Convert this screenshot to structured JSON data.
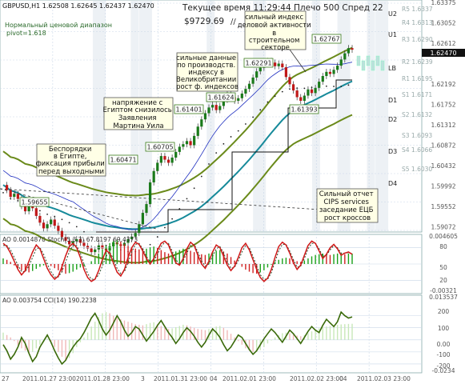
{
  "header": {
    "symbol_line": "GBPUSD,H1  1.62508 1.62645 1.62437 1.62470",
    "status_line": "Текущее время 11:29:44 Плечо 500 Спред 22",
    "balance": "$9729.69",
    "indicator_name": "Нормальный ценовой диапазон",
    "pivot_info": "pivot=1.618"
  },
  "chart_data": {
    "type": "candlestick",
    "symbol": "GBPUSD",
    "timeframe": "H1",
    "last_quote": {
      "open": 1.62508,
      "high": 1.62645,
      "low": 1.62437,
      "close": 1.6247
    },
    "ylim": [
      1.5897,
      1.6337
    ],
    "price_axis_labels": [
      "1.63375",
      "1.63052",
      "1.62612",
      "1.62470",
      "1.62192",
      "1.61752",
      "1.61312",
      "1.60872",
      "1.60432",
      "1.59992",
      "1.59552",
      "1.59072"
    ],
    "current_price_label": "1.62470",
    "time_labels": [
      "27",
      "2011.01.27 23:00",
      "2011.01.28 23:00",
      "3",
      "2011.01.31 23:00",
      "04",
      "2011.02.01 23:00",
      "2011.02.02 23:00",
      "04",
      "2011.02.03 23:00"
    ],
    "close_series": [
      1.5985,
      1.5975,
      1.5962,
      1.5968,
      1.5958,
      1.5944,
      1.5934,
      1.5948,
      1.594,
      1.5925,
      1.5912,
      1.5901,
      1.5909,
      1.5918,
      1.5906,
      1.5896,
      1.5884,
      1.5877,
      1.587,
      1.5876,
      1.588,
      1.5873,
      1.5867,
      1.5862,
      1.5855,
      1.586,
      1.5868,
      1.5862,
      1.5858,
      1.5866,
      1.5874,
      1.587,
      1.5867,
      1.5873,
      1.588,
      1.5885,
      1.5892,
      1.5909,
      1.5931,
      1.5948,
      1.599,
      1.6012,
      1.6028,
      1.6041,
      1.6034,
      1.6028,
      1.6038,
      1.6049,
      1.6059,
      1.6064,
      1.607,
      1.6062,
      1.608,
      1.6098,
      1.6112,
      1.6124,
      1.6135,
      1.614,
      1.613,
      1.6138,
      1.615,
      1.616,
      1.6155,
      1.6148,
      1.6153,
      1.6162,
      1.6171,
      1.6181,
      1.6193,
      1.6205,
      1.6212,
      1.6219,
      1.6225,
      1.6222,
      1.6215,
      1.622,
      1.6213,
      1.6194,
      1.618,
      1.6168,
      1.6155,
      1.6148,
      1.6158,
      1.617,
      1.6163,
      1.6173,
      1.6185,
      1.6196,
      1.6204,
      1.62,
      1.6208,
      1.6216,
      1.6228,
      1.624,
      1.625,
      1.6247
    ],
    "price_labels": [
      "1.59655",
      "1.60471",
      "1.60705",
      "1.61401",
      "1.61624",
      "1.62291",
      "1.61393",
      "1.62767"
    ],
    "levels": [
      {
        "name": "U2",
        "value": 1.633
      },
      {
        "name": "U1",
        "value": 1.6297
      },
      {
        "name": "LB",
        "value": 1.6225
      },
      {
        "name": "D1",
        "value": 1.6176
      },
      {
        "name": "D2",
        "value": 1.6136
      },
      {
        "name": "D3",
        "value": 1.604
      },
      {
        "name": "D4",
        "value": 1.596
      }
    ],
    "pivot_levels": [
      {
        "name": "R5",
        "value": "1.6337"
      },
      {
        "name": "R4",
        "value": "1.6313"
      },
      {
        "name": "R3",
        "value": "1.6290"
      },
      {
        "name": "R2",
        "value": "1.6239"
      },
      {
        "name": "R1",
        "value": "1.6195"
      },
      {
        "name": "S1",
        "value": "1.6171"
      },
      {
        "name": "S2",
        "value": "1.6132"
      },
      {
        "name": "S3",
        "value": "1.6093"
      },
      {
        "name": "S4",
        "value": "1.6066"
      },
      {
        "name": "S5",
        "value": "1.6030"
      }
    ],
    "annotations": [
      "сильный индекс деловой активности в строительном секторе",
      "сильные данные по производств. индексу в Великобритании рост ф. индексов",
      "напряжение с Египтом снизилось Заявления Мартина Уила",
      "Беспорядки в Египте, фиксация прибыли перед выходными",
      "Сильный отчет CIPS services заседание ЕЦБ рост кроссов"
    ],
    "ao_stoch": {
      "label": "AO 0.0014870  Stoch(5,3,3) 67.8197 69.4373",
      "ylim": [
        -0.0032,
        0.0046
      ],
      "axis_labels": [
        "0.004605",
        "80",
        "50",
        "20",
        "-0.00321"
      ],
      "stoch_main": [
        88,
        82,
        70,
        55,
        40,
        30,
        38,
        55,
        72,
        85,
        78,
        60,
        42,
        30,
        22,
        28,
        45,
        65,
        82,
        88,
        80,
        62,
        40,
        25,
        18,
        22,
        38,
        58,
        75,
        70,
        52,
        35,
        28,
        40,
        62,
        80,
        90,
        86,
        74,
        60,
        50,
        60,
        75,
        88,
        92,
        85,
        68,
        52,
        48,
        60,
        78,
        90,
        84,
        66,
        50,
        42,
        55,
        72,
        85,
        80,
        64,
        48,
        38,
        46,
        62,
        80,
        88,
        76,
        58,
        40,
        25,
        18,
        24,
        40,
        62,
        82,
        90,
        85,
        70,
        52,
        40,
        48,
        66,
        84,
        92,
        88,
        74,
        60,
        68,
        80,
        86,
        78,
        66,
        70,
        72,
        68
      ],
      "stoch_signal": [
        84,
        84,
        76,
        62,
        48,
        36,
        36,
        46,
        62,
        78,
        80,
        68,
        50,
        36,
        26,
        26,
        36,
        54,
        72,
        84,
        84,
        70,
        50,
        32,
        22,
        22,
        30,
        46,
        64,
        72,
        60,
        42,
        32,
        36,
        52,
        72,
        86,
        88,
        78,
        64,
        54,
        56,
        68,
        82,
        90,
        88,
        74,
        58,
        50,
        56,
        70,
        84,
        86,
        72,
        56,
        46,
        50,
        64,
        78,
        82,
        70,
        54,
        42,
        44,
        56,
        72,
        84,
        80,
        64,
        46,
        30,
        22,
        22,
        34,
        54,
        74,
        86,
        86,
        74,
        58,
        44,
        46,
        60,
        78,
        88,
        88,
        78,
        64,
        66,
        76,
        84,
        80,
        70,
        70,
        71,
        69
      ],
      "ao_values": [
        0.0008,
        0.0006,
        0.0003,
        -0.0002,
        -0.0006,
        -0.0009,
        -0.0011,
        -0.0012,
        -0.001,
        -0.0007,
        -0.0004,
        -0.0002,
        0.0001,
        -0.0003,
        -0.0006,
        -0.0009,
        -0.0012,
        -0.0014,
        -0.0013,
        -0.0011,
        -0.0008,
        -0.0005,
        -0.0003,
        0.0,
        0.0004,
        0.0009,
        0.0015,
        0.0021,
        0.0026,
        0.003,
        0.0033,
        0.0034,
        0.0032,
        0.0029,
        0.0026,
        0.0024,
        0.0022,
        0.0021,
        0.002,
        0.0022,
        0.0024,
        0.0025,
        0.0023,
        0.002,
        0.0017,
        0.0015,
        0.0016,
        0.0018,
        0.002,
        0.0022,
        0.0021,
        0.0019,
        0.0017,
        0.0015,
        0.0014,
        0.0013,
        0.0015,
        0.0017,
        0.0019,
        0.002,
        0.0018,
        0.0015,
        0.001,
        0.0005,
        0.0,
        -0.0004,
        -0.0008,
        -0.0011,
        -0.0013,
        -0.0014,
        -0.0012,
        -0.0009,
        -0.0005,
        -0.0001,
        0.0003,
        0.0006,
        0.0008,
        0.0009,
        0.0008,
        0.0006,
        0.0004,
        0.0003,
        0.0005,
        0.0008,
        0.0011,
        0.0013,
        0.0014,
        0.0015,
        0.0014,
        0.0013,
        0.0014,
        0.0015,
        0.0015,
        0.0014,
        0.0015,
        0.0015
      ]
    },
    "ao_cci": {
      "label": "AO 0.003754  CCI(14) 190.2238",
      "ylim": [
        -260,
        350
      ],
      "axis_labels": [
        "0.013537",
        "200",
        "100",
        "0.00",
        "-100",
        "-200",
        "-0.0234"
      ],
      "cci_values": [
        -40,
        -90,
        -160,
        -120,
        -60,
        20,
        -30,
        -110,
        -180,
        -140,
        -60,
        -10,
        40,
        -20,
        -90,
        -150,
        -200,
        -170,
        -110,
        -60,
        -20,
        10,
        60,
        120,
        180,
        220,
        160,
        90,
        40,
        80,
        140,
        200,
        150,
        80,
        30,
        60,
        110,
        90,
        40,
        -10,
        30,
        70,
        120,
        160,
        110,
        60,
        20,
        -30,
        10,
        60,
        100,
        70,
        30,
        -20,
        -60,
        -20,
        40,
        90,
        60,
        20,
        -40,
        -90,
        -60,
        -10,
        40,
        20,
        -30,
        -80,
        -120,
        -90,
        -40,
        10,
        50,
        90,
        60,
        20,
        -20,
        30,
        80,
        50,
        10,
        -30,
        20,
        70,
        110,
        80,
        60,
        120,
        170,
        140,
        110,
        150,
        230,
        200,
        180,
        190
      ],
      "ao_values": [
        60,
        40,
        20,
        -10,
        -40,
        -70,
        -90,
        -110,
        -100,
        -70,
        -40,
        -20,
        10,
        -20,
        -60,
        -100,
        -140,
        -170,
        -150,
        -110,
        -60,
        -20,
        20,
        60,
        110,
        150,
        190,
        220,
        230,
        220,
        200,
        180,
        170,
        160,
        150,
        140,
        130,
        125,
        120,
        130,
        140,
        145,
        130,
        115,
        100,
        90,
        95,
        105,
        115,
        125,
        120,
        110,
        100,
        90,
        85,
        80,
        90,
        100,
        110,
        115,
        100,
        80,
        50,
        20,
        -10,
        -40,
        -70,
        -90,
        -100,
        -100,
        -85,
        -60,
        -30,
        -5,
        20,
        40,
        55,
        60,
        55,
        45,
        35,
        30,
        40,
        55,
        70,
        85,
        95,
        105,
        110,
        115,
        120,
        125,
        128,
        130,
        132,
        133
      ]
    }
  }
}
